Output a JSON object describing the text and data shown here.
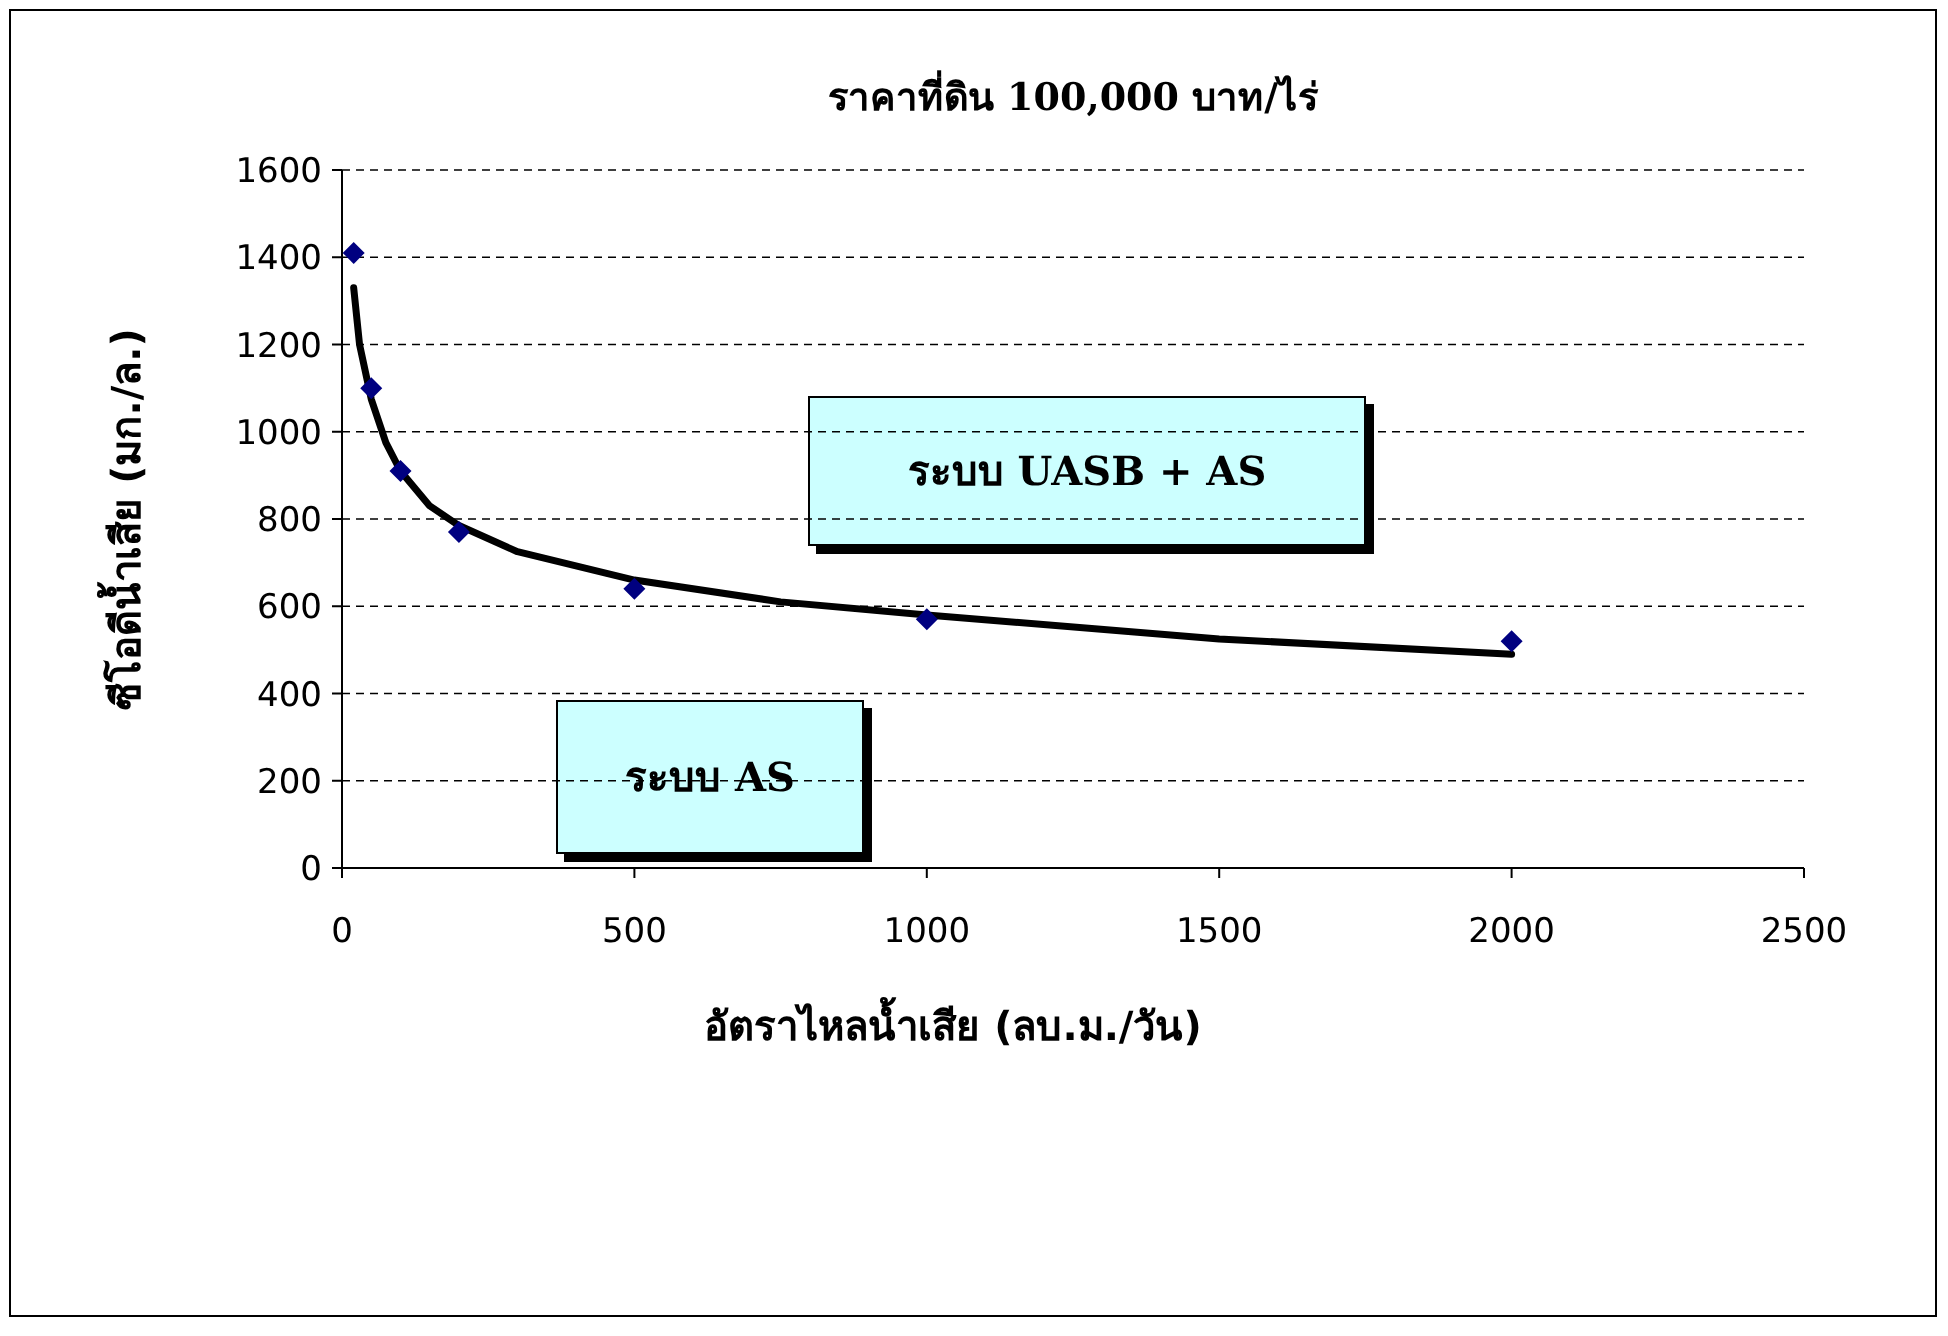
{
  "chart_data": {
    "type": "scatter",
    "title": "ราคาที่ดิน 100,000 บาท/ไร่",
    "xlabel": "อัตราไหลน้ำเสีย (ลบ.ม./วัน)",
    "ylabel": "ซีโอดีน้ำเสีย (มก./ล.)",
    "annotations": [
      "ระบบ UASB + AS",
      "ระบบ AS"
    ],
    "xlim": [
      0,
      2500
    ],
    "ylim": [
      0,
      1600
    ],
    "xticks": [
      0,
      500,
      1000,
      1500,
      2000,
      2500
    ],
    "yticks": [
      0,
      200,
      400,
      600,
      800,
      1000,
      1200,
      1400,
      1600
    ],
    "grid": "y",
    "series": [
      {
        "type": "scatter",
        "marker": "diamond",
        "color": "#000080",
        "x": [
          20,
          50,
          100,
          200,
          500,
          1000,
          2000
        ],
        "values": [
          1410,
          1100,
          910,
          770,
          640,
          570,
          520
        ]
      },
      {
        "type": "line",
        "line_style": "solid",
        "color": "#000000",
        "x": [
          20,
          30,
          50,
          75,
          100,
          150,
          200,
          300,
          500,
          750,
          1000,
          1500,
          2000
        ],
        "values": [
          1330,
          1200,
          1075,
          975,
          910,
          830,
          785,
          725,
          660,
          610,
          580,
          525,
          490
        ]
      }
    ]
  }
}
